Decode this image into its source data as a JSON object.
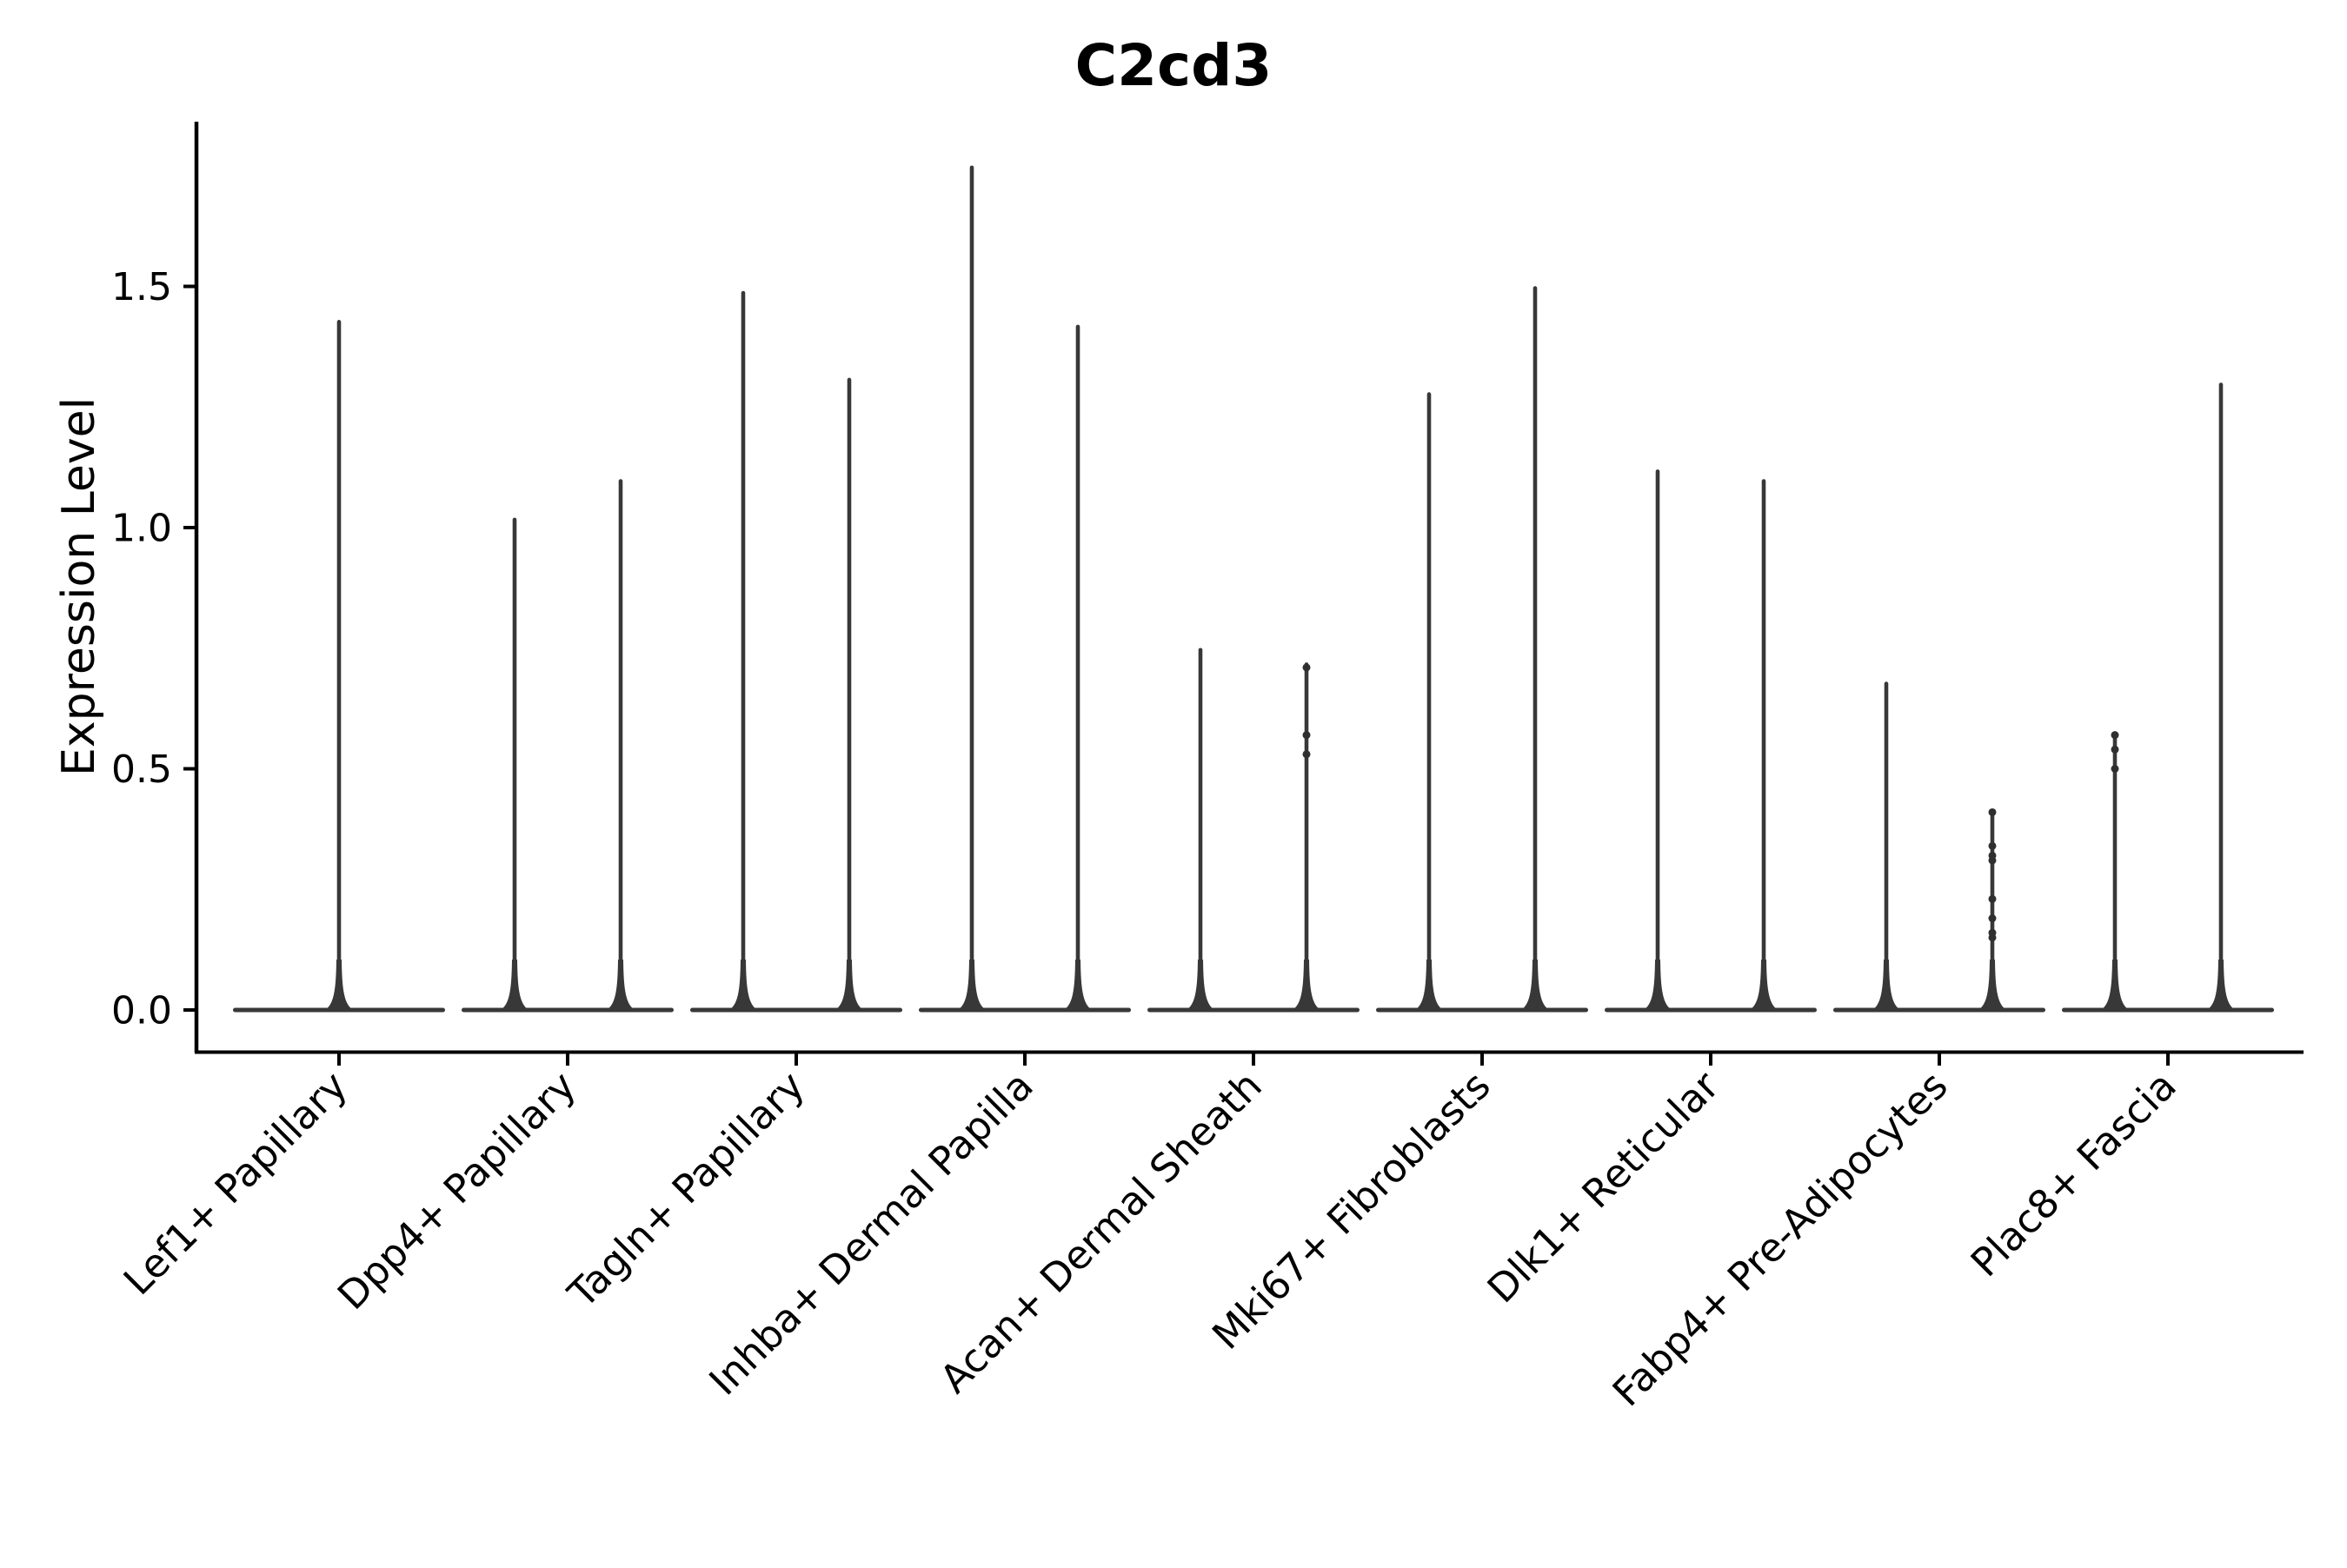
{
  "title": "C2cd3",
  "axes": {
    "ylabel": "Expression Level",
    "xlabel": ""
  },
  "chart_data": {
    "type": "violin",
    "title": "C2cd3",
    "xlabel": "",
    "ylabel": "Expression Level",
    "ylim": [
      -0.09,
      1.84
    ],
    "yticks": [
      0.0,
      0.5,
      1.0,
      1.5
    ],
    "ytick_labels": [
      "0.0",
      "0.5",
      "1.0",
      "1.5"
    ],
    "grid": false,
    "legend": "none",
    "x_label_rotation_deg": 45,
    "categories": [
      "Lef1+ Papillary",
      "Dpp4+ Papillary",
      "Tagln+ Papillary",
      "Inhba+ Dermal Papilla",
      "Acan+ Dermal Sheath",
      "Mki67+ Fibroblasts",
      "Dlk1+ Reticular",
      "Fabp4+ Pre-Adipocytes",
      "Plac8+ Fascia"
    ],
    "description": "Zero-inflated expression violins: wide flat base at 0 with a thin tail spike up to the max expression value. Categories 2-9 each contain two dodged violins; category 1 has a single full-width violin.",
    "violins": [
      {
        "category": "Lef1+ Papillary",
        "category_index": 0,
        "group": 0,
        "groups_in_category": 1,
        "max_expression": 1.43,
        "points": []
      },
      {
        "category": "Dpp4+ Papillary",
        "category_index": 1,
        "group": 0,
        "groups_in_category": 2,
        "max_expression": 1.02,
        "points": []
      },
      {
        "category": "Dpp4+ Papillary",
        "category_index": 1,
        "group": 1,
        "groups_in_category": 2,
        "max_expression": 1.1,
        "points": []
      },
      {
        "category": "Tagln+ Papillary",
        "category_index": 2,
        "group": 0,
        "groups_in_category": 2,
        "max_expression": 1.49,
        "points": []
      },
      {
        "category": "Tagln+ Papillary",
        "category_index": 2,
        "group": 1,
        "groups_in_category": 2,
        "max_expression": 1.31,
        "points": []
      },
      {
        "category": "Inhba+ Dermal Papilla",
        "category_index": 3,
        "group": 0,
        "groups_in_category": 2,
        "max_expression": 1.75,
        "points": []
      },
      {
        "category": "Inhba+ Dermal Papilla",
        "category_index": 3,
        "group": 1,
        "groups_in_category": 2,
        "max_expression": 1.42,
        "points": []
      },
      {
        "category": "Acan+ Dermal Sheath",
        "category_index": 4,
        "group": 0,
        "groups_in_category": 2,
        "max_expression": 0.75,
        "points": []
      },
      {
        "category": "Acan+ Dermal Sheath",
        "category_index": 4,
        "group": 1,
        "groups_in_category": 2,
        "max_expression": 0.72,
        "points": [
          0.71,
          0.57,
          0.53
        ]
      },
      {
        "category": "Mki67+ Fibroblasts",
        "category_index": 5,
        "group": 0,
        "groups_in_category": 2,
        "max_expression": 1.28,
        "points": []
      },
      {
        "category": "Mki67+ Fibroblasts",
        "category_index": 5,
        "group": 1,
        "groups_in_category": 2,
        "max_expression": 1.5,
        "points": []
      },
      {
        "category": "Dlk1+ Reticular",
        "category_index": 6,
        "group": 0,
        "groups_in_category": 2,
        "max_expression": 1.12,
        "points": []
      },
      {
        "category": "Dlk1+ Reticular",
        "category_index": 6,
        "group": 1,
        "groups_in_category": 2,
        "max_expression": 1.1,
        "points": []
      },
      {
        "category": "Fabp4+ Pre-Adipocytes",
        "category_index": 7,
        "group": 0,
        "groups_in_category": 2,
        "max_expression": 0.68,
        "points": []
      },
      {
        "category": "Fabp4+ Pre-Adipocytes",
        "category_index": 7,
        "group": 1,
        "groups_in_category": 2,
        "max_expression": 0.41,
        "points": [
          0.41,
          0.34,
          0.32,
          0.31,
          0.23,
          0.19,
          0.16,
          0.15
        ]
      },
      {
        "category": "Plac8+ Fascia",
        "category_index": 8,
        "group": 0,
        "groups_in_category": 2,
        "max_expression": 0.57,
        "points": [
          0.57,
          0.54,
          0.5
        ]
      },
      {
        "category": "Plac8+ Fascia",
        "category_index": 8,
        "group": 1,
        "groups_in_category": 2,
        "max_expression": 1.3,
        "points": []
      }
    ],
    "colors": {
      "violin": "#383838",
      "point": "#2f2f2f",
      "axis": "#000000",
      "text": "#000000",
      "background": "#ffffff"
    }
  }
}
